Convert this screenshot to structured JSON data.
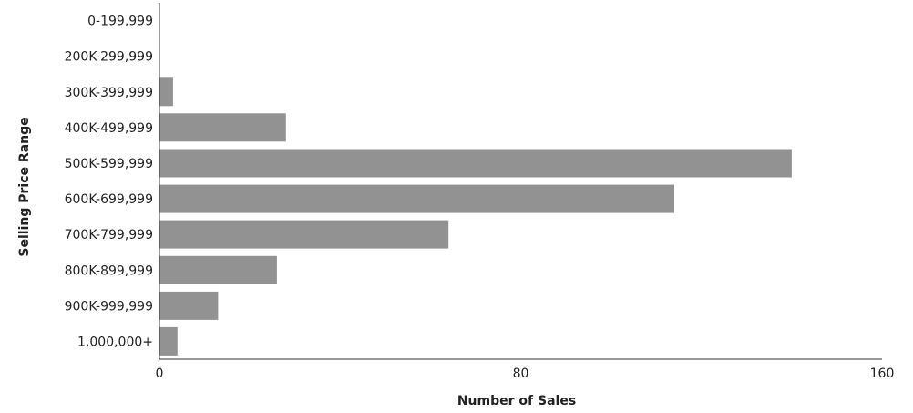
{
  "chart_data": {
    "type": "bar",
    "orientation": "horizontal",
    "categories": [
      "0-199,999",
      "200K-299,999",
      "300K-399,999",
      "400K-499,999",
      "500K-599,999",
      "600K-699,999",
      "700K-799,999",
      "800K-899,999",
      "900K-999,999",
      "1,000,000+"
    ],
    "values": [
      0,
      0,
      3,
      28,
      140,
      114,
      64,
      26,
      13,
      4
    ],
    "xlabel": "Number of Sales",
    "ylabel": "Selling Price Range",
    "xlim": [
      0,
      160
    ],
    "xticks": [
      "0",
      "80",
      "160"
    ],
    "grid": false,
    "bar_color": "#929292"
  }
}
